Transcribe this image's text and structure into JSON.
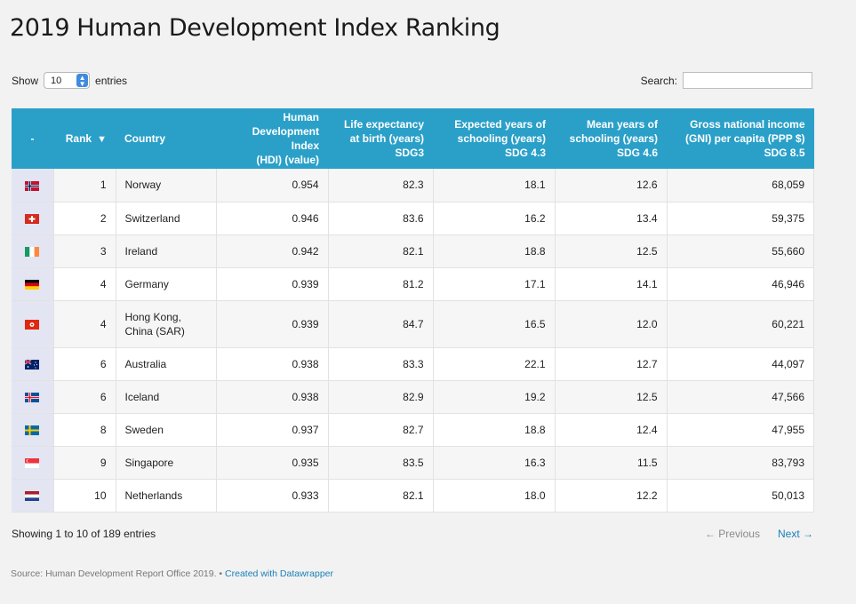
{
  "title": "2019 Human Development Index Ranking",
  "length_menu": {
    "before": "Show",
    "value": "10",
    "after": "entries"
  },
  "search": {
    "label": "Search:",
    "value": ""
  },
  "columns": {
    "flag": "-",
    "rank": "Rank",
    "country": "Country",
    "hdi": [
      "Human",
      "Development Index",
      "(HDI) (value)"
    ],
    "life": [
      "Life expectancy",
      "at birth (years)",
      "SDG3"
    ],
    "expected": [
      "Expected years of",
      "schooling (years)",
      "SDG 4.3"
    ],
    "mean": [
      "Mean years of",
      "schooling (years)",
      "SDG 4.6"
    ],
    "gni": [
      "Gross national income",
      "(GNI) per capita (PPP $)",
      "SDG 8.5"
    ]
  },
  "rows": [
    {
      "flag": "norway-flag-icon",
      "rank": "1",
      "country": [
        "Norway"
      ],
      "hdi": "0.954",
      "life": "82.3",
      "expected": "18.1",
      "mean": "12.6",
      "gni": "68,059"
    },
    {
      "flag": "switzerland-flag-icon",
      "rank": "2",
      "country": [
        "Switzerland"
      ],
      "hdi": "0.946",
      "life": "83.6",
      "expected": "16.2",
      "mean": "13.4",
      "gni": "59,375"
    },
    {
      "flag": "ireland-flag-icon",
      "rank": "3",
      "country": [
        "Ireland"
      ],
      "hdi": "0.942",
      "life": "82.1",
      "expected": "18.8",
      "mean": "12.5",
      "gni": "55,660"
    },
    {
      "flag": "germany-flag-icon",
      "rank": "4",
      "country": [
        "Germany"
      ],
      "hdi": "0.939",
      "life": "81.2",
      "expected": "17.1",
      "mean": "14.1",
      "gni": "46,946"
    },
    {
      "flag": "hong-kong-flag-icon",
      "rank": "4",
      "country": [
        "Hong Kong,",
        "China (SAR)"
      ],
      "hdi": "0.939",
      "life": "84.7",
      "expected": "16.5",
      "mean": "12.0",
      "gni": "60,221"
    },
    {
      "flag": "australia-flag-icon",
      "rank": "6",
      "country": [
        "Australia"
      ],
      "hdi": "0.938",
      "life": "83.3",
      "expected": "22.1",
      "mean": "12.7",
      "gni": "44,097"
    },
    {
      "flag": "iceland-flag-icon",
      "rank": "6",
      "country": [
        "Iceland"
      ],
      "hdi": "0.938",
      "life": "82.9",
      "expected": "19.2",
      "mean": "12.5",
      "gni": "47,566"
    },
    {
      "flag": "sweden-flag-icon",
      "rank": "8",
      "country": [
        "Sweden"
      ],
      "hdi": "0.937",
      "life": "82.7",
      "expected": "18.8",
      "mean": "12.4",
      "gni": "47,955"
    },
    {
      "flag": "singapore-flag-icon",
      "rank": "9",
      "country": [
        "Singapore"
      ],
      "hdi": "0.935",
      "life": "83.5",
      "expected": "16.3",
      "mean": "11.5",
      "gni": "83,793"
    },
    {
      "flag": "netherlands-flag-icon",
      "rank": "10",
      "country": [
        "Netherlands"
      ],
      "hdi": "0.933",
      "life": "82.1",
      "expected": "18.0",
      "mean": "12.2",
      "gni": "50,013"
    }
  ],
  "info": "Showing 1 to 10 of 189 entries",
  "pager": {
    "previous": "← Previous",
    "next": "Next →"
  },
  "source": {
    "text": "Source: Human Development Report Office 2019. • ",
    "link": "Created with Datawrapper"
  },
  "colors": {
    "header": "#2aa0c9",
    "link": "#1a80b8",
    "flag_column": "#e3e6f2"
  }
}
